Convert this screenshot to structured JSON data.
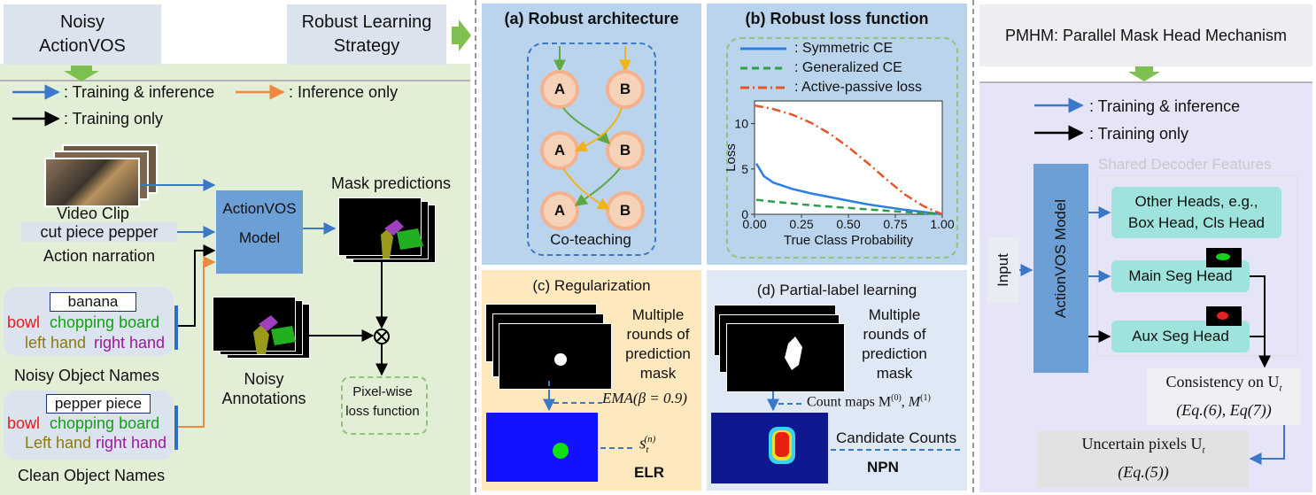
{
  "left": {
    "noisy_box": "Noisy ActionVOS",
    "robust_box": "Robust Learning Strategy",
    "legend": {
      "train_infer": ": Training & inference",
      "infer_only": ": Inference only",
      "train_only": ": Training only"
    },
    "video_clip": "Video Clip",
    "narration_box": "cut piece pepper",
    "narration_label": "Action narration",
    "model_line1": "ActionVOS",
    "model_line2": "Model",
    "mask_predictions": "Mask predictions",
    "noisy_names": {
      "boxed": "banana",
      "w1": "bowl",
      "w2": "chopping board",
      "w3": "left hand",
      "w4": "right hand",
      "caption": "Noisy Object Names"
    },
    "clean_names": {
      "boxed": "pepper piece",
      "w1": "bowl",
      "w2": "chopping board",
      "w3": "Left hand",
      "w4": "right hand",
      "caption": "Clean Object Names"
    },
    "noisy_annotations": "Noisy Annotations",
    "loss_box": "Pixel-wise loss function"
  },
  "panel_a": {
    "title": "(a) Robust architecture",
    "node_a": "A",
    "node_b": "B",
    "caption": "Co-teaching"
  },
  "panel_b": {
    "title": "(b) Robust loss function",
    "legend": [
      ": Symmetric CE",
      ": Generalized CE",
      ": Active-passive loss"
    ],
    "colors": {
      "sce": "#2a7fe0",
      "gce": "#2e9e4a",
      "apl": "#e8532a"
    }
  },
  "chart_data": {
    "type": "line",
    "xlabel": "True Class Probability",
    "ylabel": "Loss",
    "xlim": [
      0,
      1
    ],
    "ylim": [
      0,
      12.5
    ],
    "xticks": [
      "0.00",
      "0.25",
      "0.50",
      "0.75",
      "1.00"
    ],
    "yticks": [
      "0",
      "5",
      "10"
    ],
    "series": [
      {
        "name": "Symmetric CE",
        "style": "solid",
        "x": [
          0.01,
          0.05,
          0.1,
          0.2,
          0.3,
          0.4,
          0.5,
          0.6,
          0.7,
          0.8,
          0.9,
          1.0
        ],
        "y": [
          5.6,
          4.2,
          3.5,
          2.8,
          2.3,
          1.9,
          1.5,
          1.1,
          0.8,
          0.5,
          0.25,
          0.0
        ]
      },
      {
        "name": "Generalized CE",
        "style": "dashed",
        "x": [
          0.01,
          0.1,
          0.2,
          0.3,
          0.4,
          0.5,
          0.6,
          0.7,
          0.8,
          0.9,
          1.0
        ],
        "y": [
          1.6,
          1.4,
          1.2,
          1.0,
          0.85,
          0.7,
          0.55,
          0.4,
          0.25,
          0.12,
          0.0
        ]
      },
      {
        "name": "Active-passive loss",
        "style": "dashdot",
        "x": [
          0.0,
          0.1,
          0.2,
          0.3,
          0.4,
          0.5,
          0.6,
          0.7,
          0.8,
          0.9,
          1.0
        ],
        "y": [
          12.0,
          11.6,
          11.0,
          10.1,
          8.9,
          7.4,
          5.7,
          3.9,
          2.2,
          0.9,
          0.0
        ]
      }
    ]
  },
  "panel_c": {
    "title": "(c) Regularization",
    "text_lines": [
      "Multiple",
      "rounds of",
      "prediction",
      "mask"
    ],
    "ema": "EMA(β = 0.9)",
    "s_label": "s",
    "s_sub": "t",
    "s_sup": "(n)",
    "label": "ELR"
  },
  "panel_d": {
    "title": "(d) Partial-label learning",
    "text_lines": [
      "Multiple",
      "rounds of",
      "prediction",
      "mask"
    ],
    "count_maps": "Count maps M",
    "count_maps_tail": "(0)",
    "count_maps_tail2": "(1)",
    "candidate": "Candidate Counts",
    "label": "NPN"
  },
  "right": {
    "title": "PMHM: Parallel Mask Head Mechanism",
    "legend_train_infer": ": Training & inference",
    "legend_train_only": ": Training only",
    "shared": "Shared Decoder Features",
    "input": "Input",
    "model": "ActionVOS Model",
    "other_heads_1": "Other Heads, e.g.,",
    "other_heads_2": "Box Head, Cls Head",
    "main_seg": "Main Seg Head",
    "aux_seg": "Aux Seg Head",
    "consistency_1": "Consistency on U",
    "consistency_sub": "t",
    "consistency_2": "(Eq.(6), Eq(7))",
    "uncertain_1": "Uncertain pixels U",
    "uncertain_sub": "t",
    "uncertain_2": "(Eq.(5))"
  }
}
